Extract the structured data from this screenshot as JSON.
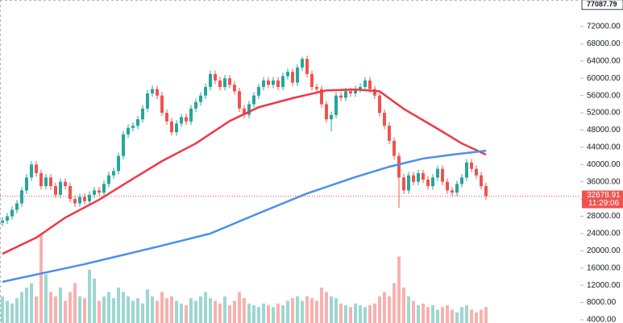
{
  "chart_data": {
    "type": "candlestick",
    "up_color": "#26a69a",
    "down_color": "#ef5350",
    "ylim": [
      3250,
      78170
    ],
    "yticks": [
      {
        "value": 4000,
        "label": "4000.00"
      },
      {
        "value": 8000,
        "label": "8000.00"
      },
      {
        "value": 12000,
        "label": "12000.00"
      },
      {
        "value": 16000,
        "label": "16000.00"
      },
      {
        "value": 20000,
        "label": "20000.00"
      },
      {
        "value": 24000,
        "label": "24000.00"
      },
      {
        "value": 28000,
        "label": "28000.00"
      },
      {
        "value": 32000,
        "label": "32000.00"
      },
      {
        "value": 36000,
        "label": "36000.00"
      },
      {
        "value": 40000,
        "label": "40000.00"
      },
      {
        "value": 44000,
        "label": "44000.00"
      },
      {
        "value": 48000,
        "label": "48000.00"
      },
      {
        "value": 52000,
        "label": "52000.00"
      },
      {
        "value": 56000,
        "label": "56000.00"
      },
      {
        "value": 60000,
        "label": "60000.00"
      },
      {
        "value": 64000,
        "label": "64000.00"
      },
      {
        "value": 68000,
        "label": "68000.00"
      },
      {
        "value": 72000,
        "label": "72000.00"
      }
    ],
    "open": [
      26500,
      27000,
      28000,
      29500,
      31000,
      34000,
      37000,
      40000,
      38000,
      35000,
      37000,
      35000,
      33000,
      36000,
      35000,
      32000,
      31000,
      32500,
      31500,
      33000,
      34000,
      33500,
      35500,
      37500,
      38500,
      42000,
      47000,
      48500,
      49000,
      50500,
      53000,
      56500,
      57500,
      56000,
      52000,
      50000,
      47500,
      49500,
      51000,
      50000,
      53000,
      54500,
      56000,
      58000,
      61000,
      59500,
      58000,
      60000,
      58500,
      57000,
      53000,
      51500,
      54000,
      56000,
      58000,
      59500,
      58500,
      59500,
      58000,
      60500,
      61500,
      59000,
      62500,
      64500,
      61000,
      58000,
      57500,
      54000,
      50500,
      51500,
      56000,
      55500,
      57000,
      56500,
      57500,
      58000,
      59500,
      57500,
      56000,
      52000,
      49000,
      45500,
      42000,
      37000,
      34000,
      37500,
      36000,
      38000,
      36500,
      35000,
      37000,
      39000,
      36000,
      34000,
      33500,
      35500,
      37000,
      40500,
      39000,
      37500,
      35000
    ],
    "high": [
      27800,
      28800,
      30300,
      31800,
      34800,
      37800,
      40800,
      40800,
      38800,
      37800,
      37800,
      35800,
      36800,
      36800,
      35800,
      32800,
      33300,
      33300,
      33800,
      34800,
      34800,
      36300,
      38300,
      39300,
      42800,
      47800,
      49300,
      49800,
      51300,
      53800,
      57300,
      58300,
      58300,
      56800,
      52800,
      50800,
      50300,
      51800,
      51800,
      53800,
      55300,
      56800,
      58800,
      61800,
      61800,
      60300,
      60800,
      60800,
      59300,
      57800,
      53800,
      54800,
      56800,
      58800,
      60300,
      60300,
      60300,
      60300,
      61300,
      62300,
      62300,
      63300,
      65000,
      65300,
      61800,
      58800,
      58300,
      54800,
      52300,
      56800,
      56800,
      57800,
      57800,
      58300,
      58800,
      60300,
      60300,
      58300,
      56800,
      52800,
      49800,
      46300,
      42800,
      37800,
      38300,
      38300,
      38800,
      38800,
      37300,
      37800,
      39800,
      39800,
      36800,
      34800,
      36300,
      37800,
      41300,
      41300,
      39800,
      38300,
      35800
    ],
    "low": [
      25700,
      26200,
      27200,
      28700,
      30200,
      33200,
      36200,
      37200,
      34200,
      34200,
      34200,
      32200,
      32200,
      34200,
      31200,
      30200,
      30200,
      30700,
      30700,
      32200,
      32700,
      32700,
      34700,
      36700,
      37700,
      41200,
      46200,
      47700,
      48200,
      49700,
      52200,
      55700,
      55200,
      51200,
      49200,
      46700,
      46700,
      48700,
      49200,
      49200,
      52200,
      53700,
      55200,
      57200,
      58700,
      57200,
      57200,
      57700,
      56200,
      52200,
      50700,
      50700,
      53200,
      55200,
      57200,
      57700,
      57700,
      57200,
      57200,
      59700,
      58200,
      58200,
      61700,
      60200,
      57200,
      56700,
      53200,
      49700,
      47700,
      50700,
      54700,
      54700,
      55700,
      55700,
      56700,
      57200,
      56700,
      55200,
      51200,
      48200,
      44700,
      41200,
      30000,
      33200,
      33200,
      35200,
      35200,
      35700,
      34200,
      34200,
      36200,
      35200,
      33200,
      32700,
      32700,
      34700,
      36200,
      38200,
      36700,
      34200,
      31800
    ],
    "close": [
      27000,
      28000,
      29500,
      31000,
      34000,
      37000,
      40000,
      38000,
      35000,
      37000,
      35000,
      33000,
      36000,
      35000,
      32000,
      31000,
      32500,
      31500,
      33000,
      34000,
      33500,
      35500,
      37500,
      38500,
      42000,
      47000,
      48500,
      49000,
      50500,
      53000,
      56500,
      57500,
      56000,
      52000,
      50000,
      47500,
      49500,
      51000,
      50000,
      53000,
      54500,
      56000,
      58000,
      61000,
      59500,
      58000,
      60000,
      58500,
      57000,
      53000,
      51500,
      54000,
      56000,
      58000,
      59500,
      58500,
      59500,
      58000,
      60500,
      61500,
      59000,
      62500,
      64500,
      61000,
      58000,
      57500,
      54000,
      50500,
      51500,
      56000,
      55500,
      57000,
      56500,
      57500,
      58000,
      59500,
      57500,
      56000,
      52000,
      49000,
      45500,
      42000,
      37000,
      34000,
      37500,
      36000,
      38000,
      36500,
      35000,
      37000,
      39000,
      36000,
      34000,
      33500,
      35500,
      37000,
      40500,
      39000,
      37500,
      35000,
      32678.91
    ],
    "volume": [
      30,
      25,
      22,
      28,
      35,
      40,
      45,
      30,
      100,
      55,
      35,
      30,
      40,
      25,
      35,
      45,
      30,
      28,
      60,
      50,
      25,
      30,
      35,
      28,
      40,
      35,
      30,
      25,
      28,
      22,
      38,
      30,
      25,
      35,
      28,
      30,
      25,
      22,
      20,
      28,
      25,
      30,
      35,
      28,
      25,
      22,
      30,
      20,
      25,
      35,
      28,
      22,
      20,
      18,
      22,
      20,
      18,
      22,
      20,
      25,
      28,
      30,
      25,
      30,
      28,
      25,
      40,
      35,
      30,
      28,
      22,
      20,
      18,
      22,
      20,
      18,
      20,
      22,
      30,
      35,
      30,
      45,
      75,
      40,
      30,
      25,
      20,
      22,
      18,
      20,
      15,
      18,
      20,
      15,
      12,
      18,
      20,
      15,
      12,
      15,
      18
    ],
    "series": [
      {
        "color": "#f23645",
        "x": [
          0,
          7,
          13,
          20,
          27,
          33,
          40,
          47,
          53,
          60,
          67,
          73,
          78,
          83,
          90,
          95,
          100
        ],
        "values": [
          19300,
          23050,
          27700,
          31850,
          36700,
          40800,
          44900,
          50100,
          53300,
          55400,
          57200,
          57400,
          57000,
          52900,
          48300,
          44900,
          42300
        ]
      },
      {
        "color": "#4c8ef0",
        "x": [
          0,
          17,
          33,
          43,
          53,
          63,
          73,
          80,
          87,
          93,
          100
        ],
        "values": [
          12800,
          16900,
          21200,
          24000,
          28700,
          33300,
          37100,
          39500,
          41400,
          42300,
          43200
        ]
      }
    ],
    "last_price": 32678.91,
    "countdown": "11:29:06",
    "max_price": 77087.79
  }
}
